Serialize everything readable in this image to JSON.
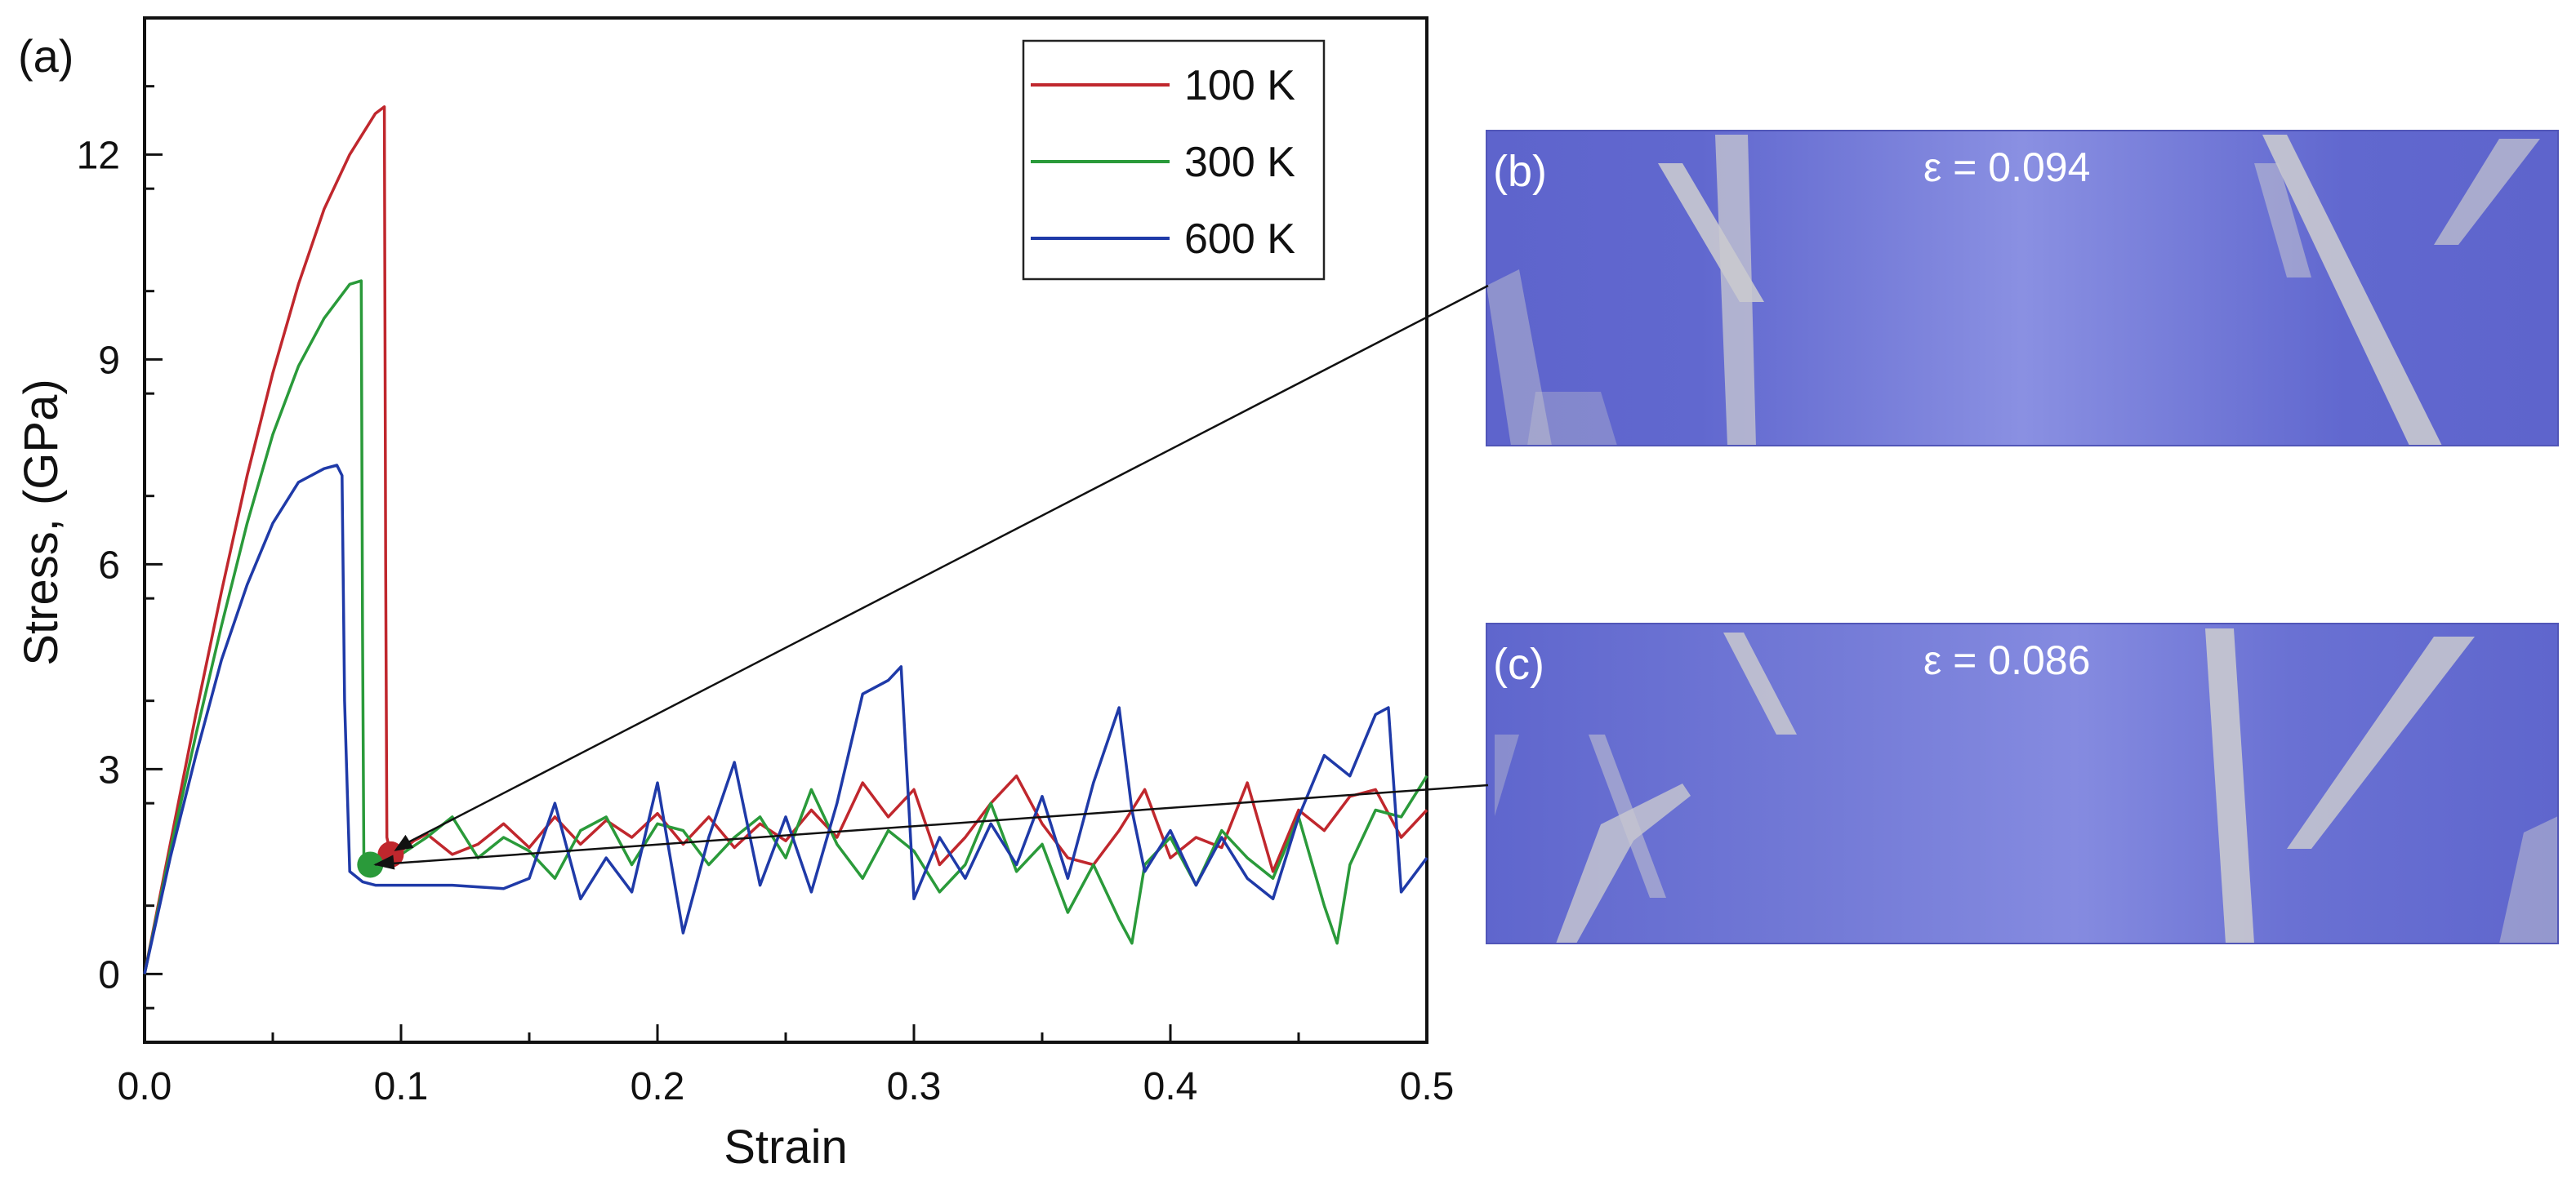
{
  "panel_labels": {
    "a": "(a)",
    "b": "(b)",
    "c": "(c)"
  },
  "inset_b": {
    "strain_label": "ε = 0.094",
    "base_color": "#6f76d4",
    "band_color": "#c9c9cf"
  },
  "inset_c": {
    "strain_label": "ε = 0.086",
    "base_color": "#6f76d4",
    "band_color": "#c9c9cf"
  },
  "chart_data": {
    "type": "line",
    "title": "",
    "xlabel": "Strain",
    "ylabel": "Stress, (GPa)",
    "xlim": [
      0.0,
      0.5
    ],
    "ylim": [
      -1.0,
      14.0
    ],
    "xticks": [
      0.0,
      0.1,
      0.2,
      0.3,
      0.4,
      0.5
    ],
    "xtick_labels": [
      "0.0",
      "0.1",
      "0.2",
      "0.3",
      "0.4",
      "0.5"
    ],
    "yticks": [
      0,
      3,
      6,
      9,
      12
    ],
    "ytick_labels": [
      "0",
      "3",
      "6",
      "9",
      "12"
    ],
    "grid": false,
    "legend_position": "top-right",
    "series": [
      {
        "name": "100 K",
        "color": "#c0272d",
        "x": [
          0,
          0.01,
          0.02,
          0.03,
          0.04,
          0.05,
          0.06,
          0.07,
          0.08,
          0.09,
          0.0935,
          0.094,
          0.0945,
          0.096,
          0.1,
          0.105,
          0.11,
          0.12,
          0.13,
          0.14,
          0.15,
          0.16,
          0.17,
          0.18,
          0.19,
          0.2,
          0.21,
          0.22,
          0.23,
          0.24,
          0.25,
          0.26,
          0.27,
          0.28,
          0.29,
          0.3,
          0.31,
          0.32,
          0.33,
          0.34,
          0.35,
          0.36,
          0.37,
          0.38,
          0.39,
          0.4,
          0.41,
          0.42,
          0.43,
          0.44,
          0.45,
          0.46,
          0.47,
          0.48,
          0.49,
          0.5
        ],
        "y": [
          0,
          1.9,
          3.8,
          5.6,
          7.3,
          8.8,
          10.1,
          11.2,
          12.0,
          12.6,
          12.7,
          6.0,
          2.0,
          1.75,
          1.8,
          1.95,
          2.05,
          1.75,
          1.9,
          2.2,
          1.85,
          2.3,
          1.9,
          2.25,
          2.0,
          2.35,
          1.9,
          2.3,
          1.85,
          2.2,
          1.95,
          2.4,
          2.0,
          2.8,
          2.3,
          2.7,
          1.6,
          2.0,
          2.5,
          2.9,
          2.2,
          1.7,
          1.6,
          2.1,
          2.7,
          1.7,
          2.0,
          1.85,
          2.8,
          1.5,
          2.4,
          2.1,
          2.6,
          2.7,
          2.0,
          2.4
        ]
      },
      {
        "name": "300 K",
        "color": "#2a9a3a",
        "x": [
          0,
          0.01,
          0.02,
          0.03,
          0.04,
          0.05,
          0.06,
          0.07,
          0.08,
          0.0845,
          0.085,
          0.0855,
          0.088,
          0.09,
          0.1,
          0.11,
          0.12,
          0.13,
          0.14,
          0.15,
          0.16,
          0.17,
          0.18,
          0.19,
          0.2,
          0.21,
          0.22,
          0.23,
          0.24,
          0.25,
          0.26,
          0.27,
          0.28,
          0.29,
          0.3,
          0.31,
          0.32,
          0.33,
          0.34,
          0.35,
          0.36,
          0.37,
          0.38,
          0.385,
          0.39,
          0.4,
          0.41,
          0.42,
          0.43,
          0.44,
          0.45,
          0.46,
          0.465,
          0.47,
          0.48,
          0.49,
          0.5
        ],
        "y": [
          0,
          1.8,
          3.5,
          5.1,
          6.6,
          7.9,
          8.9,
          9.6,
          10.1,
          10.15,
          5.0,
          1.7,
          1.6,
          1.55,
          1.75,
          2.0,
          2.3,
          1.7,
          2.0,
          1.8,
          1.4,
          2.1,
          2.3,
          1.6,
          2.2,
          2.1,
          1.6,
          2.0,
          2.3,
          1.7,
          2.7,
          1.9,
          1.4,
          2.1,
          1.8,
          1.2,
          1.6,
          2.5,
          1.5,
          1.9,
          0.9,
          1.6,
          0.8,
          0.45,
          1.6,
          2.0,
          1.3,
          2.1,
          1.7,
          1.4,
          2.3,
          1.0,
          0.45,
          1.6,
          2.4,
          2.3,
          2.9
        ]
      },
      {
        "name": "600 K",
        "color": "#1f3aa8",
        "x": [
          0,
          0.01,
          0.02,
          0.03,
          0.04,
          0.05,
          0.06,
          0.07,
          0.075,
          0.077,
          0.078,
          0.08,
          0.085,
          0.09,
          0.1,
          0.12,
          0.14,
          0.15,
          0.16,
          0.17,
          0.18,
          0.19,
          0.2,
          0.21,
          0.22,
          0.23,
          0.24,
          0.25,
          0.26,
          0.27,
          0.28,
          0.29,
          0.295,
          0.3,
          0.31,
          0.32,
          0.33,
          0.34,
          0.35,
          0.36,
          0.37,
          0.38,
          0.385,
          0.39,
          0.4,
          0.41,
          0.42,
          0.43,
          0.44,
          0.45,
          0.46,
          0.47,
          0.48,
          0.485,
          0.49,
          0.5
        ],
        "y": [
          0,
          1.7,
          3.2,
          4.6,
          5.7,
          6.6,
          7.2,
          7.4,
          7.45,
          7.3,
          4.0,
          1.5,
          1.35,
          1.3,
          1.3,
          1.3,
          1.25,
          1.4,
          2.5,
          1.1,
          1.7,
          1.2,
          2.8,
          0.6,
          2.0,
          3.1,
          1.3,
          2.3,
          1.2,
          2.5,
          4.1,
          4.3,
          4.5,
          1.1,
          2.0,
          1.4,
          2.2,
          1.6,
          2.6,
          1.4,
          2.8,
          3.9,
          2.4,
          1.5,
          2.1,
          1.3,
          2.0,
          1.4,
          1.1,
          2.3,
          3.2,
          2.9,
          3.8,
          3.9,
          1.2,
          1.7
        ]
      }
    ],
    "markers": [
      {
        "name": "100 K snapshot",
        "x": 0.096,
        "y": 1.75,
        "color": "#c0272d"
      },
      {
        "name": "300 K snapshot",
        "x": 0.088,
        "y": 1.6,
        "color": "#2a9a3a"
      }
    ]
  }
}
